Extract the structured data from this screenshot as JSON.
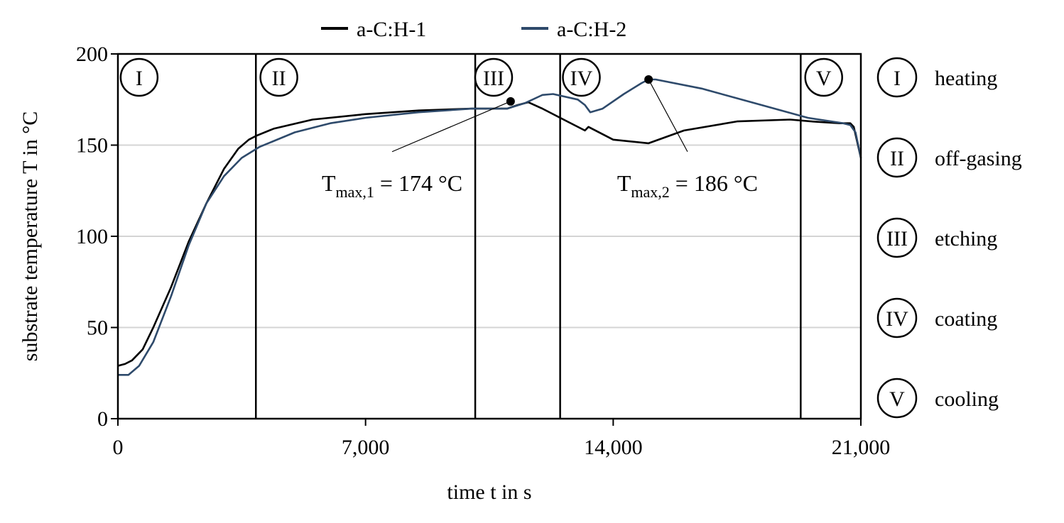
{
  "chart_data": {
    "type": "line",
    "xlabel": "time t in s",
    "ylabel": "substrate temperature T in °C",
    "xlim": [
      0,
      21000
    ],
    "ylim": [
      0,
      200
    ],
    "x_ticks": [
      0,
      7000,
      14000,
      21000
    ],
    "x_tick_labels": [
      "0",
      "7,000",
      "14,000",
      "21,000"
    ],
    "y_ticks": [
      0,
      50,
      100,
      150,
      200
    ],
    "y_tick_labels": [
      "0",
      "50",
      "100",
      "150",
      "200"
    ],
    "grid": "horizontal",
    "legend": "top",
    "series": [
      {
        "name": "a-C:H-1",
        "color": "#000000",
        "x": [
          0,
          200,
          400,
          700,
          1000,
          1500,
          2000,
          2500,
          3000,
          3400,
          3700,
          3900,
          4400,
          5500,
          7000,
          8500,
          10000,
          11000,
          11300,
          11600,
          12000,
          12700,
          13200,
          13300,
          14000,
          15000,
          16000,
          17500,
          19000,
          19600,
          20400,
          20700,
          20800,
          21000
        ],
        "y": [
          29,
          30,
          32,
          38,
          50,
          72,
          97,
          118,
          137,
          148,
          153,
          155,
          159,
          164,
          167,
          169,
          170,
          170,
          172,
          173.5,
          170,
          163,
          158,
          160,
          153,
          151,
          158,
          163,
          164,
          163,
          162,
          162,
          160,
          143
        ]
      },
      {
        "name": "a-C:H-2",
        "color": "#2e4a6b",
        "x": [
          0,
          300,
          600,
          1000,
          1500,
          2000,
          2500,
          3000,
          3500,
          4000,
          5000,
          6000,
          7000,
          8500,
          10000,
          11000,
          11500,
          12000,
          12300,
          13000,
          13200,
          13350,
          13700,
          14300,
          14800,
          15000,
          15200,
          16500,
          18000,
          19500,
          20500,
          20700,
          20850,
          21000
        ],
        "y": [
          24,
          24,
          29,
          42,
          67,
          95,
          118,
          133,
          143,
          149,
          157,
          162,
          165,
          168,
          170,
          170,
          173,
          177.5,
          178,
          175,
          172,
          168,
          170,
          178,
          184,
          186,
          186,
          181,
          173,
          165,
          162,
          161,
          157,
          143
        ]
      }
    ],
    "phase_boundaries": [
      3900,
      10100,
      12500,
      19300
    ],
    "phases": [
      {
        "numeral": "I",
        "label": "heating",
        "x_center": 600
      },
      {
        "numeral": "II",
        "label": "off-gasing",
        "x_center": 4550
      },
      {
        "numeral": "III",
        "label": "etching",
        "x_center": 10620
      },
      {
        "numeral": "IV",
        "label": "coating",
        "x_center": 13100
      },
      {
        "numeral": "V",
        "label": "cooling",
        "x_center": 19950
      }
    ],
    "annotations": [
      {
        "text_main": "T",
        "text_sub": "max,1",
        "text_rest": " = 174 °C",
        "point": [
          11100,
          174
        ],
        "text_anchor": [
          7750,
          125
        ]
      },
      {
        "text_main": "T",
        "text_sub": "max,2",
        "text_rest": " = 186 °C",
        "point": [
          15000,
          186
        ],
        "text_anchor": [
          16100,
          125
        ]
      }
    ]
  }
}
